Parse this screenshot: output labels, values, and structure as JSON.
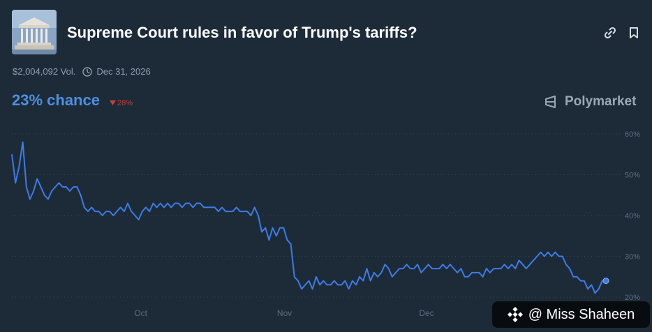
{
  "market": {
    "title": "Supreme Court rules in favor of Trump's tariffs?",
    "volume": "$2,004,092 Vol.",
    "end_date": "Dec 31, 2026",
    "chance": "23% chance",
    "change": "28%",
    "change_direction": "down",
    "brand": "Polymarket"
  },
  "icons": {
    "link": "link-icon",
    "bookmark": "bookmark-icon",
    "clock": "clock-icon",
    "brand": "polymarket-logo"
  },
  "colors": {
    "background": "#1d2b39",
    "line": "#3f7be3",
    "chance": "#4f8fe0",
    "change": "#c0433c"
  },
  "watermark": {
    "text": "@ Miss Shaheen"
  },
  "chart_data": {
    "type": "line",
    "title": "",
    "xlabel": "",
    "ylabel": "",
    "x_ticks": [
      "Oct",
      "Nov",
      "Dec"
    ],
    "y_ticks": [
      "60%",
      "50%",
      "40%",
      "30%",
      "20%"
    ],
    "ylim": [
      20,
      60
    ],
    "y_unit": "%",
    "grid": true,
    "series": [
      {
        "values": [
          55,
          48,
          52,
          58,
          47,
          44,
          46,
          49,
          47,
          45,
          44,
          46,
          47,
          48,
          47,
          47,
          46,
          47,
          47,
          45,
          42,
          41,
          42,
          41,
          41,
          40,
          41,
          41,
          40,
          41,
          42,
          41,
          43,
          41,
          40,
          39,
          41,
          42,
          41,
          43,
          42,
          43,
          42,
          43,
          42,
          43,
          43,
          42,
          43,
          43,
          42,
          43,
          43,
          42,
          42,
          42,
          42,
          41,
          42,
          41,
          41,
          41,
          42,
          41,
          41,
          41,
          40,
          42,
          40,
          36,
          37,
          34,
          37,
          35,
          37,
          37,
          34,
          33,
          25,
          24,
          22,
          23,
          24,
          22,
          25,
          23,
          24,
          23,
          23,
          24,
          23,
          23,
          24,
          22,
          24,
          23,
          25,
          24,
          27,
          24,
          26,
          25,
          26,
          28,
          27,
          25,
          26,
          27,
          27,
          28,
          27,
          27,
          28,
          26,
          27,
          28,
          27,
          27,
          27,
          28,
          27,
          28,
          27,
          26,
          27,
          25,
          25,
          26,
          26,
          26,
          25,
          27,
          26,
          27,
          27,
          27,
          28,
          27,
          28,
          27,
          29,
          28,
          27,
          28,
          29,
          30,
          31,
          30,
          31,
          30,
          31,
          30,
          30,
          28,
          27,
          25,
          25,
          24,
          24,
          22,
          23,
          21,
          22,
          24,
          24
        ]
      }
    ]
  }
}
